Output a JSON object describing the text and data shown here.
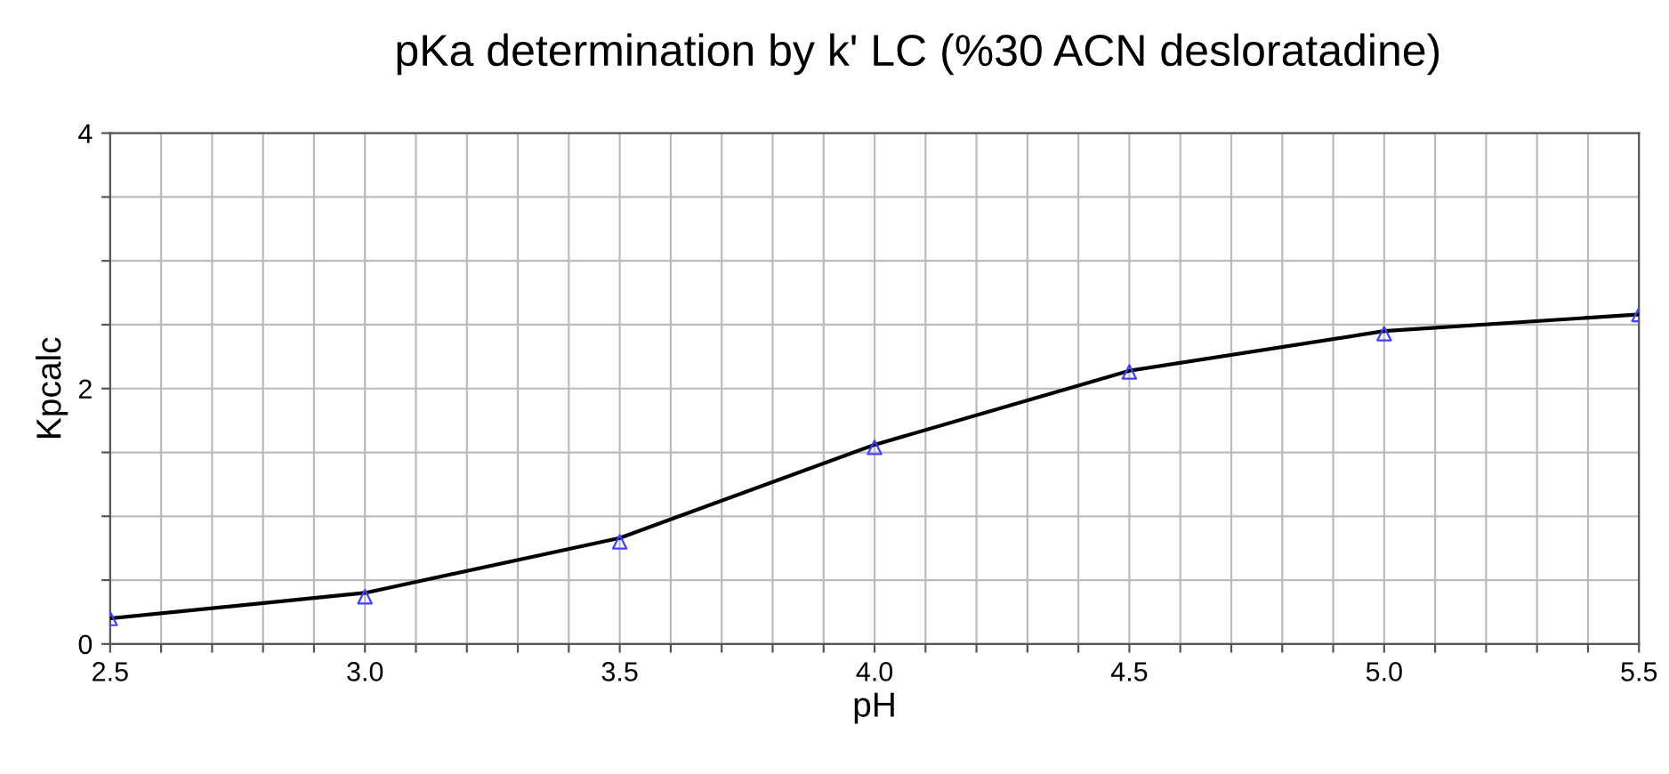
{
  "chart_data": {
    "type": "line",
    "title": "pKa determination by k' LC (%30 ACN desloratadine)",
    "xlabel": "pH",
    "ylabel": "Kpcalc",
    "xlim": [
      2.5,
      5.5
    ],
    "ylim": [
      0,
      4
    ],
    "xticks": [
      2.5,
      {
        "value": 2.6,
        "label": null
      },
      {
        "value": 2.7,
        "label": null
      },
      {
        "value": 2.8,
        "label": null
      },
      {
        "value": 2.9,
        "label": null
      },
      {
        "value": 3.0,
        "label": "3.0"
      },
      {
        "value": 3.1,
        "label": null
      },
      {
        "value": 3.2,
        "label": null
      },
      {
        "value": 3.3,
        "label": null
      },
      {
        "value": 3.4,
        "label": null
      },
      3.5,
      {
        "value": 3.6,
        "label": null
      },
      {
        "value": 3.7,
        "label": null
      },
      {
        "value": 3.8,
        "label": null
      },
      {
        "value": 3.9,
        "label": null
      },
      {
        "value": 4.0,
        "label": "4.0"
      },
      {
        "value": 4.1,
        "label": null
      },
      {
        "value": 4.2,
        "label": null
      },
      {
        "value": 4.3,
        "label": null
      },
      {
        "value": 4.4,
        "label": null
      },
      4.5,
      {
        "value": 4.6,
        "label": null
      },
      {
        "value": 4.7,
        "label": null
      },
      {
        "value": 4.8,
        "label": null
      },
      {
        "value": 4.9,
        "label": null
      },
      {
        "value": 5.0,
        "label": "5.0"
      },
      {
        "value": 5.1,
        "label": null
      },
      {
        "value": 5.2,
        "label": null
      },
      {
        "value": 5.3,
        "label": null
      },
      {
        "value": 5.4,
        "label": null
      },
      5.5
    ],
    "yticks": [
      0,
      {
        "value": 0.5,
        "label": null
      },
      {
        "value": 1,
        "label": null
      },
      {
        "value": 1.5,
        "label": null
      },
      2,
      {
        "value": 2.5,
        "label": null
      },
      {
        "value": 3,
        "label": null
      },
      {
        "value": 3.5,
        "label": null
      },
      4
    ],
    "grid": true,
    "x": [
      2.5,
      3.0,
      3.5,
      4.0,
      4.5,
      5.0,
      5.5
    ],
    "series": [
      {
        "type": "scatter",
        "color": "#4040ff",
        "marker": "triangle",
        "values": [
          0.2,
          0.37,
          0.8,
          1.54,
          2.13,
          2.43,
          2.58
        ]
      },
      {
        "color": "#000000",
        "marker": "none",
        "values": [
          0.2,
          0.4,
          0.83,
          1.56,
          2.14,
          2.45,
          2.58
        ]
      }
    ]
  }
}
